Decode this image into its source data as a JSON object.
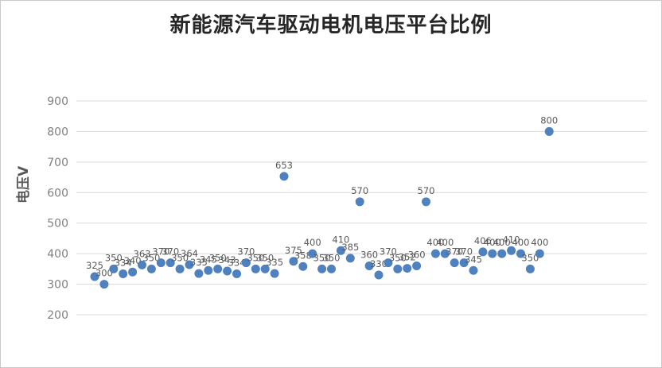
{
  "chart_data": {
    "type": "scatter",
    "title": "新能源汽车驱动电机电压平台比例",
    "ylabel": "电压V",
    "xlabel": "",
    "ylim": [
      200,
      900
    ],
    "yticks": [
      200,
      300,
      400,
      500,
      600,
      700,
      800,
      900
    ],
    "grid": true,
    "legend": "none",
    "series_color": "#4e81bd",
    "label_color": "#595959",
    "tick_color": "#808080",
    "grid_color": "#d9d9d9",
    "values": [
      325,
      300,
      350,
      334,
      340,
      363,
      350,
      370,
      370,
      350,
      364,
      335,
      345,
      350,
      343,
      334,
      370,
      350,
      350,
      335,
      653,
      375,
      358,
      400,
      350,
      350,
      410,
      385,
      570,
      360,
      330,
      370,
      350,
      352,
      360,
      570,
      400,
      400,
      370,
      370,
      345,
      406,
      400,
      400,
      410,
      400,
      350,
      400,
      800
    ]
  }
}
